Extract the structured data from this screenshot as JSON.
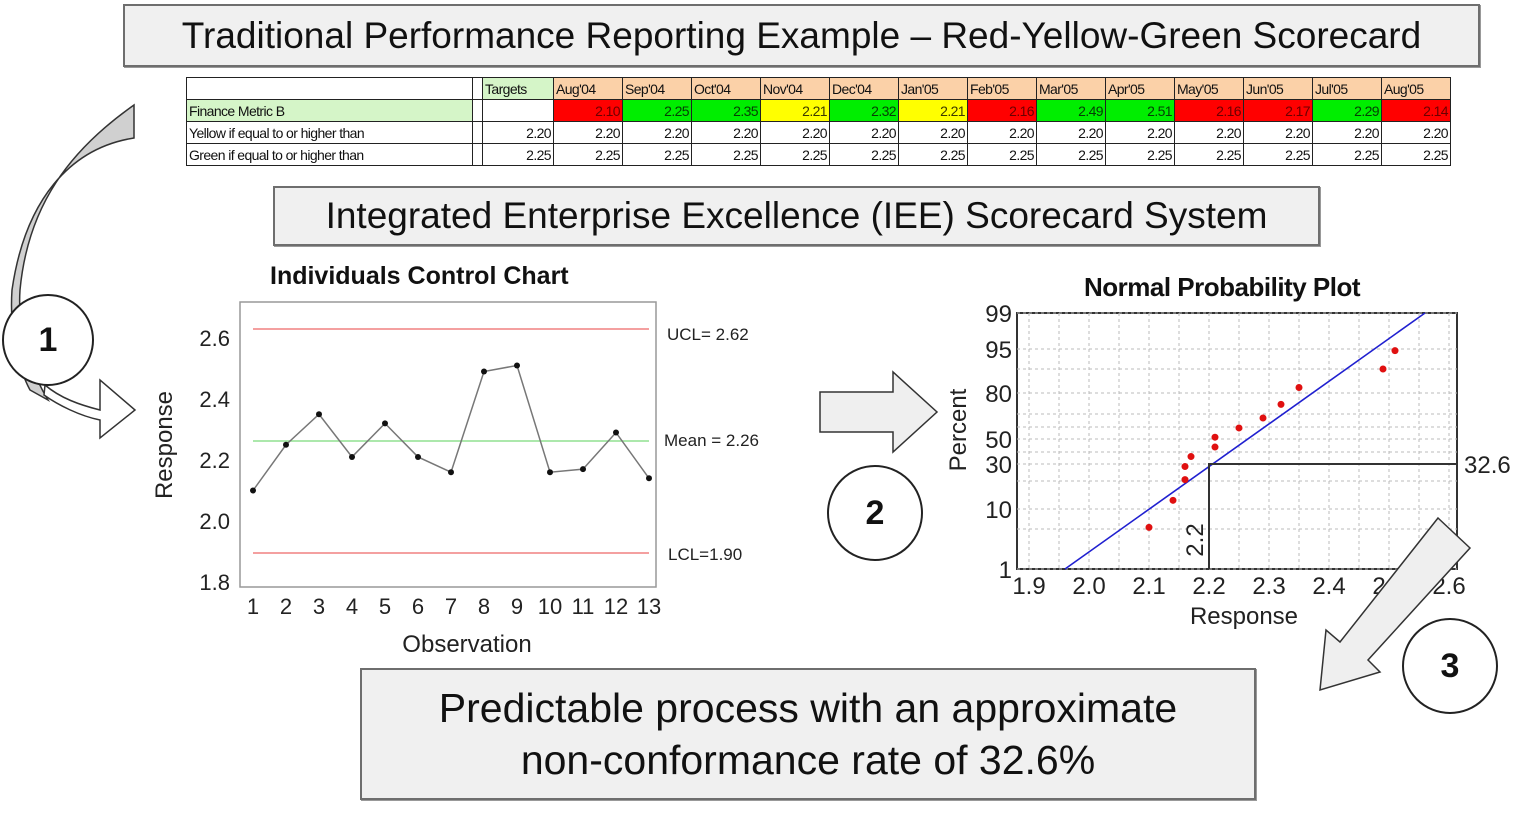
{
  "titles": {
    "traditional": "Traditional Performance Reporting Example – Red-Yellow-Green Scorecard",
    "iee": "Integrated Enterprise Excellence (IEE) Scorecard System",
    "conclusion_line1": "Predictable process with an approximate",
    "conclusion_line2": "non-conformance rate of 32.6%"
  },
  "scorecard": {
    "targets_header": "Targets",
    "months": [
      "Aug'04",
      "Sep'04",
      "Oct'04",
      "Nov'04",
      "Dec'04",
      "Jan'05",
      "Feb'05",
      "Mar'05",
      "Apr'05",
      "May'05",
      "Jun'05",
      "Jul'05",
      "Aug'05"
    ],
    "rows": [
      {
        "label": "Finance Metric B",
        "target": "",
        "values": [
          "2.10",
          "2.25",
          "2.35",
          "2.21",
          "2.32",
          "2.21",
          "2.16",
          "2.49",
          "2.51",
          "2.16",
          "2.17",
          "2.29",
          "2.14"
        ],
        "status": [
          "red",
          "green",
          "green",
          "yellow",
          "green",
          "yellow",
          "red",
          "green",
          "green",
          "red",
          "red",
          "green",
          "red"
        ]
      },
      {
        "label": "Yellow if equal to or higher than",
        "target": "2.20",
        "values": [
          "2.20",
          "2.20",
          "2.20",
          "2.20",
          "2.20",
          "2.20",
          "2.20",
          "2.20",
          "2.20",
          "2.20",
          "2.20",
          "2.20",
          "2.20"
        ]
      },
      {
        "label": "Green if equal to or higher than",
        "target": "2.25",
        "values": [
          "2.25",
          "2.25",
          "2.25",
          "2.25",
          "2.25",
          "2.25",
          "2.25",
          "2.25",
          "2.25",
          "2.25",
          "2.25",
          "2.25",
          "2.25"
        ]
      }
    ],
    "colors": {
      "red": "#ff0000",
      "yellow": "#ffff00",
      "green": "#00ee00",
      "header": "#fbd1a8",
      "target_header": "#d5f5c8"
    }
  },
  "steps": {
    "one": "1",
    "two": "2",
    "three": "3"
  },
  "chart_data": [
    {
      "type": "line",
      "title": "Individuals Control Chart",
      "xlabel": "Observation",
      "ylabel": "Response",
      "x": [
        1,
        2,
        3,
        4,
        5,
        6,
        7,
        8,
        9,
        10,
        11,
        12,
        13
      ],
      "values": [
        2.1,
        2.25,
        2.35,
        2.21,
        2.32,
        2.21,
        2.16,
        2.49,
        2.51,
        2.16,
        2.17,
        2.29,
        2.14
      ],
      "ylim": [
        1.8,
        2.7
      ],
      "yticks": [
        "1.8",
        "2.0",
        "2.2",
        "2.4",
        "2.6"
      ],
      "reference_lines": [
        {
          "label": "UCL= 2.62",
          "value": 2.62,
          "color": "#f08080"
        },
        {
          "label": "Mean = 2.26",
          "value": 2.26,
          "color": "#90e090"
        },
        {
          "label": "LCL=1.90",
          "value": 1.9,
          "color": "#f08080"
        }
      ]
    },
    {
      "type": "scatter",
      "title": "Normal Probability Plot",
      "xlabel": "Response",
      "ylabel": "Percent",
      "xticks": [
        "1.9",
        "2.0",
        "2.1",
        "2.2",
        "2.3",
        "2.4",
        "2.5",
        "2.6"
      ],
      "yticks": [
        "1",
        "10",
        "30",
        "50",
        "80",
        "95",
        "99"
      ],
      "xlim": [
        1.9,
        2.6
      ],
      "points": [
        {
          "x": 2.1,
          "p": 5.4
        },
        {
          "x": 2.14,
          "p": 13.1
        },
        {
          "x": 2.16,
          "p": 20.8
        },
        {
          "x": 2.16,
          "p": 28.5
        },
        {
          "x": 2.17,
          "p": 36.2
        },
        {
          "x": 2.21,
          "p": 43.8
        },
        {
          "x": 2.21,
          "p": 51.5
        },
        {
          "x": 2.25,
          "p": 59.2
        },
        {
          "x": 2.29,
          "p": 66.9
        },
        {
          "x": 2.32,
          "p": 74.6
        },
        {
          "x": 2.35,
          "p": 82.3
        },
        {
          "x": 2.49,
          "p": 90.0
        },
        {
          "x": 2.51,
          "p": 94.6
        }
      ],
      "fit_line": {
        "color": "#2020d0",
        "from": {
          "x": 1.96,
          "p": 1
        },
        "to": {
          "x": 2.56,
          "p": 99
        }
      },
      "annotation": {
        "x_value_label": "2.2",
        "percent_label": "32.6"
      }
    }
  ]
}
